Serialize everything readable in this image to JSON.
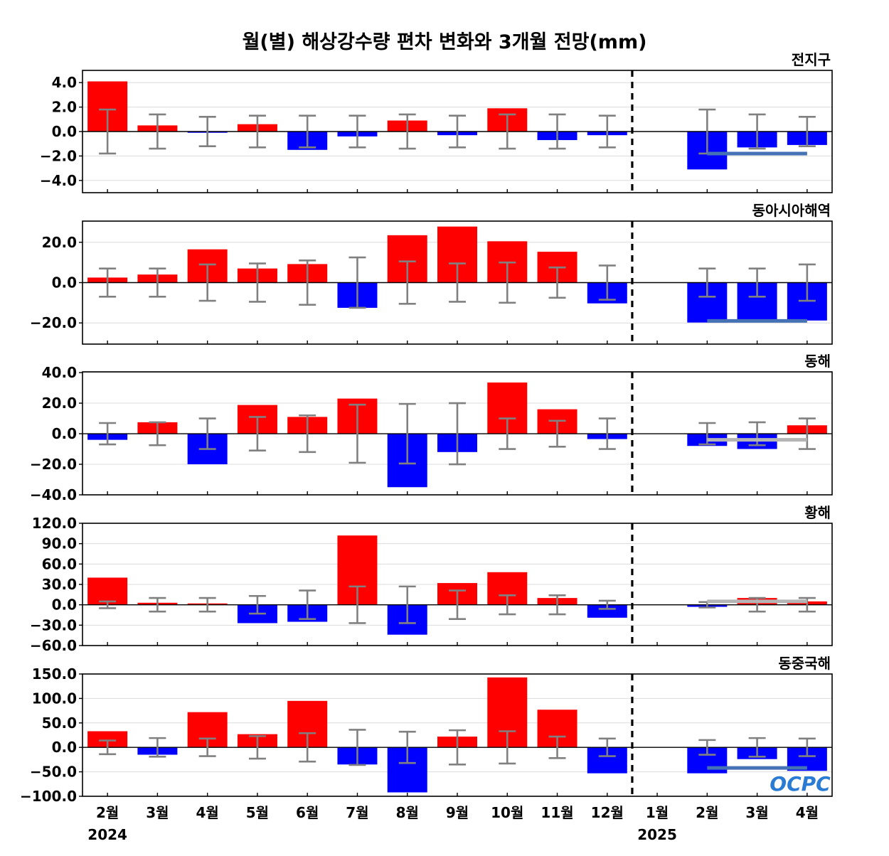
{
  "title": "월(별) 해상강수량 편차 변화와 3개월 전망(mm)",
  "logo_text": "OCPC",
  "colors": {
    "positive": "#ff0000",
    "negative": "#0000ff",
    "error_bar": "#808080",
    "outlook_negative": "#4472b4",
    "outlook_normal": "#b4b4b4"
  },
  "x_axis": {
    "categories": [
      "2월",
      "3월",
      "4월",
      "5월",
      "6월",
      "7월",
      "8월",
      "9월",
      "10월",
      "11월",
      "12월",
      "1월",
      "2월",
      "3월",
      "4월"
    ],
    "year_labels": [
      {
        "index": 0,
        "label": "2024"
      },
      {
        "index": 11,
        "label": "2025"
      }
    ],
    "divider_after_index": 10
  },
  "chart_data": [
    {
      "type": "bar",
      "title": "전지구",
      "categories": [
        "2월",
        "3월",
        "4월",
        "5월",
        "6월",
        "7월",
        "8월",
        "9월",
        "10월",
        "11월",
        "12월",
        "1월",
        "2월",
        "3월",
        "4월"
      ],
      "values": [
        4.1,
        0.5,
        -0.1,
        0.6,
        -1.5,
        -0.4,
        0.9,
        -0.3,
        1.9,
        -0.7,
        -0.3,
        0.0,
        -3.1,
        -1.3,
        -1.1
      ],
      "error": [
        1.8,
        1.4,
        1.2,
        1.3,
        1.3,
        1.3,
        1.4,
        1.3,
        1.4,
        1.4,
        1.3,
        0.0,
        1.8,
        1.4,
        1.2
      ],
      "ylim": [
        -5.0,
        5.0
      ],
      "yticks": [
        4.0,
        2.0,
        0.0,
        -2.0,
        -4.0
      ],
      "ytick_labels": [
        "4.0",
        "2.0",
        "0.0",
        "−2.0",
        "−4.0"
      ],
      "outlook": {
        "from_index": 12,
        "to_index": 14,
        "value": -1.8,
        "category": "below"
      }
    },
    {
      "type": "bar",
      "title": "동아시아해역",
      "categories": [
        "2월",
        "3월",
        "4월",
        "5월",
        "6월",
        "7월",
        "8월",
        "9월",
        "10월",
        "11월",
        "12월",
        "1월",
        "2월",
        "3월",
        "4월"
      ],
      "values": [
        2.5,
        4.0,
        16.5,
        7.0,
        9.2,
        -12.5,
        23.5,
        27.8,
        20.5,
        15.3,
        -10.3,
        0.0,
        -19.8,
        -18.5,
        -18.8
      ],
      "error": [
        7.0,
        7.0,
        9.0,
        9.5,
        11.0,
        12.5,
        10.5,
        9.5,
        10.0,
        7.5,
        8.5,
        0.0,
        7.0,
        7.0,
        9.0
      ],
      "ylim": [
        -30.5,
        30.5
      ],
      "yticks": [
        20.0,
        0.0,
        -20.0
      ],
      "ytick_labels": [
        "20.0",
        "0.0",
        "−20.0"
      ],
      "outlook": {
        "from_index": 12,
        "to_index": 14,
        "value": -19.0,
        "category": "below"
      }
    },
    {
      "type": "bar",
      "title": "동해",
      "categories": [
        "2월",
        "3월",
        "4월",
        "5월",
        "6월",
        "7월",
        "8월",
        "9월",
        "10월",
        "11월",
        "12월",
        "1월",
        "2월",
        "3월",
        "4월"
      ],
      "values": [
        -4.0,
        7.5,
        -20.0,
        18.8,
        11.0,
        23.0,
        -35.0,
        -12.0,
        33.5,
        16.0,
        -3.5,
        0.0,
        -8.0,
        -10.0,
        5.5
      ],
      "error": [
        7.0,
        7.5,
        10.0,
        11.0,
        12.0,
        19.0,
        19.5,
        20.0,
        10.0,
        8.5,
        10.0,
        0.0,
        7.0,
        7.5,
        10.0
      ],
      "ylim": [
        -40.0,
        40.5
      ],
      "yticks": [
        40.0,
        20.0,
        0.0,
        -20.0,
        -40.0
      ],
      "ytick_labels": [
        "40.0",
        "20.0",
        "0.0",
        "−20.0",
        "−40.0"
      ],
      "outlook": {
        "from_index": 12,
        "to_index": 14,
        "value": -4.0,
        "category": "normal"
      }
    },
    {
      "type": "bar",
      "title": "황해",
      "categories": [
        "2월",
        "3월",
        "4월",
        "5월",
        "6월",
        "7월",
        "8월",
        "9월",
        "10월",
        "11월",
        "12월",
        "1월",
        "2월",
        "3월",
        "4월"
      ],
      "values": [
        40.0,
        3.0,
        2.0,
        -27.0,
        -25.0,
        102.0,
        -44.0,
        32.0,
        48.0,
        10.0,
        -19.0,
        0.0,
        -3.0,
        10.0,
        5.0
      ],
      "error": [
        5.0,
        10.0,
        10.0,
        13.0,
        21.0,
        27.0,
        27.0,
        21.0,
        14.0,
        14.0,
        6.0,
        0.0,
        4.0,
        10.0,
        10.0
      ],
      "ylim": [
        -60.0,
        120.0
      ],
      "yticks": [
        120.0,
        90.0,
        60.0,
        30.0,
        0.0,
        -30.0,
        -60.0
      ],
      "ytick_labels": [
        "120.0",
        "90.0",
        "60.0",
        "30.0",
        "0.0",
        "−30.0",
        "−60.0"
      ],
      "outlook": {
        "from_index": 12,
        "to_index": 14,
        "value": 5.0,
        "category": "normal"
      }
    },
    {
      "type": "bar",
      "title": "동중국해",
      "categories": [
        "2월",
        "3월",
        "4월",
        "5월",
        "6월",
        "7월",
        "8월",
        "9월",
        "10월",
        "11월",
        "12월",
        "1월",
        "2월",
        "3월",
        "4월"
      ],
      "values": [
        33.0,
        -15.0,
        72.0,
        27.0,
        95.0,
        -35.0,
        -92.0,
        22.0,
        143.0,
        77.0,
        -53.0,
        0.0,
        -53.0,
        -24.0,
        -48.0
      ],
      "error": [
        14.0,
        19.0,
        18.0,
        23.0,
        29.0,
        36.0,
        32.0,
        35.0,
        33.0,
        22.0,
        18.0,
        0.0,
        15.0,
        19.0,
        18.0
      ],
      "ylim": [
        -100.0,
        150.0
      ],
      "yticks": [
        150.0,
        100.0,
        50.0,
        0.0,
        -50.0,
        -100.0
      ],
      "ytick_labels": [
        "150.0",
        "100.0",
        "50.0",
        "0.0",
        "−50.0",
        "−100.0"
      ],
      "outlook": {
        "from_index": 12,
        "to_index": 14,
        "value": -42.0,
        "category": "below"
      }
    }
  ]
}
